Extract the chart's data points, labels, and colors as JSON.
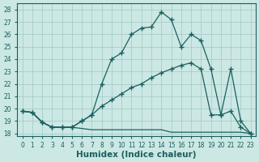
{
  "xlabel": "Humidex (Indice chaleur)",
  "background_color": "#cce8e4",
  "grid_color": "#a0c8c4",
  "line_color": "#1a5f5f",
  "xlim": [
    -0.5,
    23.5
  ],
  "ylim": [
    17.8,
    28.5
  ],
  "yticks": [
    18,
    19,
    20,
    21,
    22,
    23,
    24,
    25,
    26,
    27,
    28
  ],
  "xticks": [
    0,
    1,
    2,
    3,
    4,
    5,
    6,
    7,
    8,
    9,
    10,
    11,
    12,
    13,
    14,
    15,
    16,
    17,
    18,
    19,
    20,
    21,
    22,
    23
  ],
  "line1_x": [
    0,
    1,
    2,
    3,
    4,
    5,
    6,
    7,
    8,
    9,
    10,
    11,
    12,
    13,
    14,
    15,
    16,
    17,
    18,
    19,
    20,
    21,
    22,
    23
  ],
  "line1_y": [
    19.8,
    19.7,
    18.9,
    18.5,
    18.5,
    18.5,
    19.0,
    19.5,
    22.0,
    24.0,
    24.5,
    26.0,
    26.5,
    26.6,
    27.8,
    27.2,
    25.0,
    26.0,
    25.5,
    23.2,
    19.5,
    19.8,
    18.5,
    18.0
  ],
  "line2_x": [
    0,
    1,
    2,
    3,
    4,
    5,
    6,
    7,
    8,
    9,
    10,
    11,
    12,
    13,
    14,
    15,
    16,
    17,
    18,
    19,
    20,
    21,
    22,
    23
  ],
  "line2_y": [
    19.8,
    19.7,
    18.9,
    18.5,
    18.5,
    18.5,
    19.0,
    19.5,
    20.2,
    20.7,
    21.2,
    21.7,
    22.0,
    22.5,
    22.9,
    23.2,
    23.5,
    23.7,
    23.2,
    19.5,
    19.5,
    23.2,
    19.0,
    18.0
  ],
  "line3_x": [
    0,
    1,
    2,
    3,
    4,
    5,
    6,
    7,
    8,
    9,
    10,
    11,
    12,
    13,
    14,
    15,
    16,
    17,
    18,
    19,
    20,
    21,
    22,
    23
  ],
  "line3_y": [
    19.8,
    19.7,
    18.9,
    18.5,
    18.5,
    18.5,
    18.4,
    18.3,
    18.3,
    18.3,
    18.3,
    18.3,
    18.3,
    18.3,
    18.3,
    18.1,
    18.1,
    18.1,
    18.1,
    18.1,
    18.1,
    18.1,
    18.1,
    18.0
  ],
  "marker": "+",
  "markersize": 4.0,
  "linewidth": 0.9,
  "tick_fontsize": 5.5,
  "xlabel_fontsize": 7.5
}
